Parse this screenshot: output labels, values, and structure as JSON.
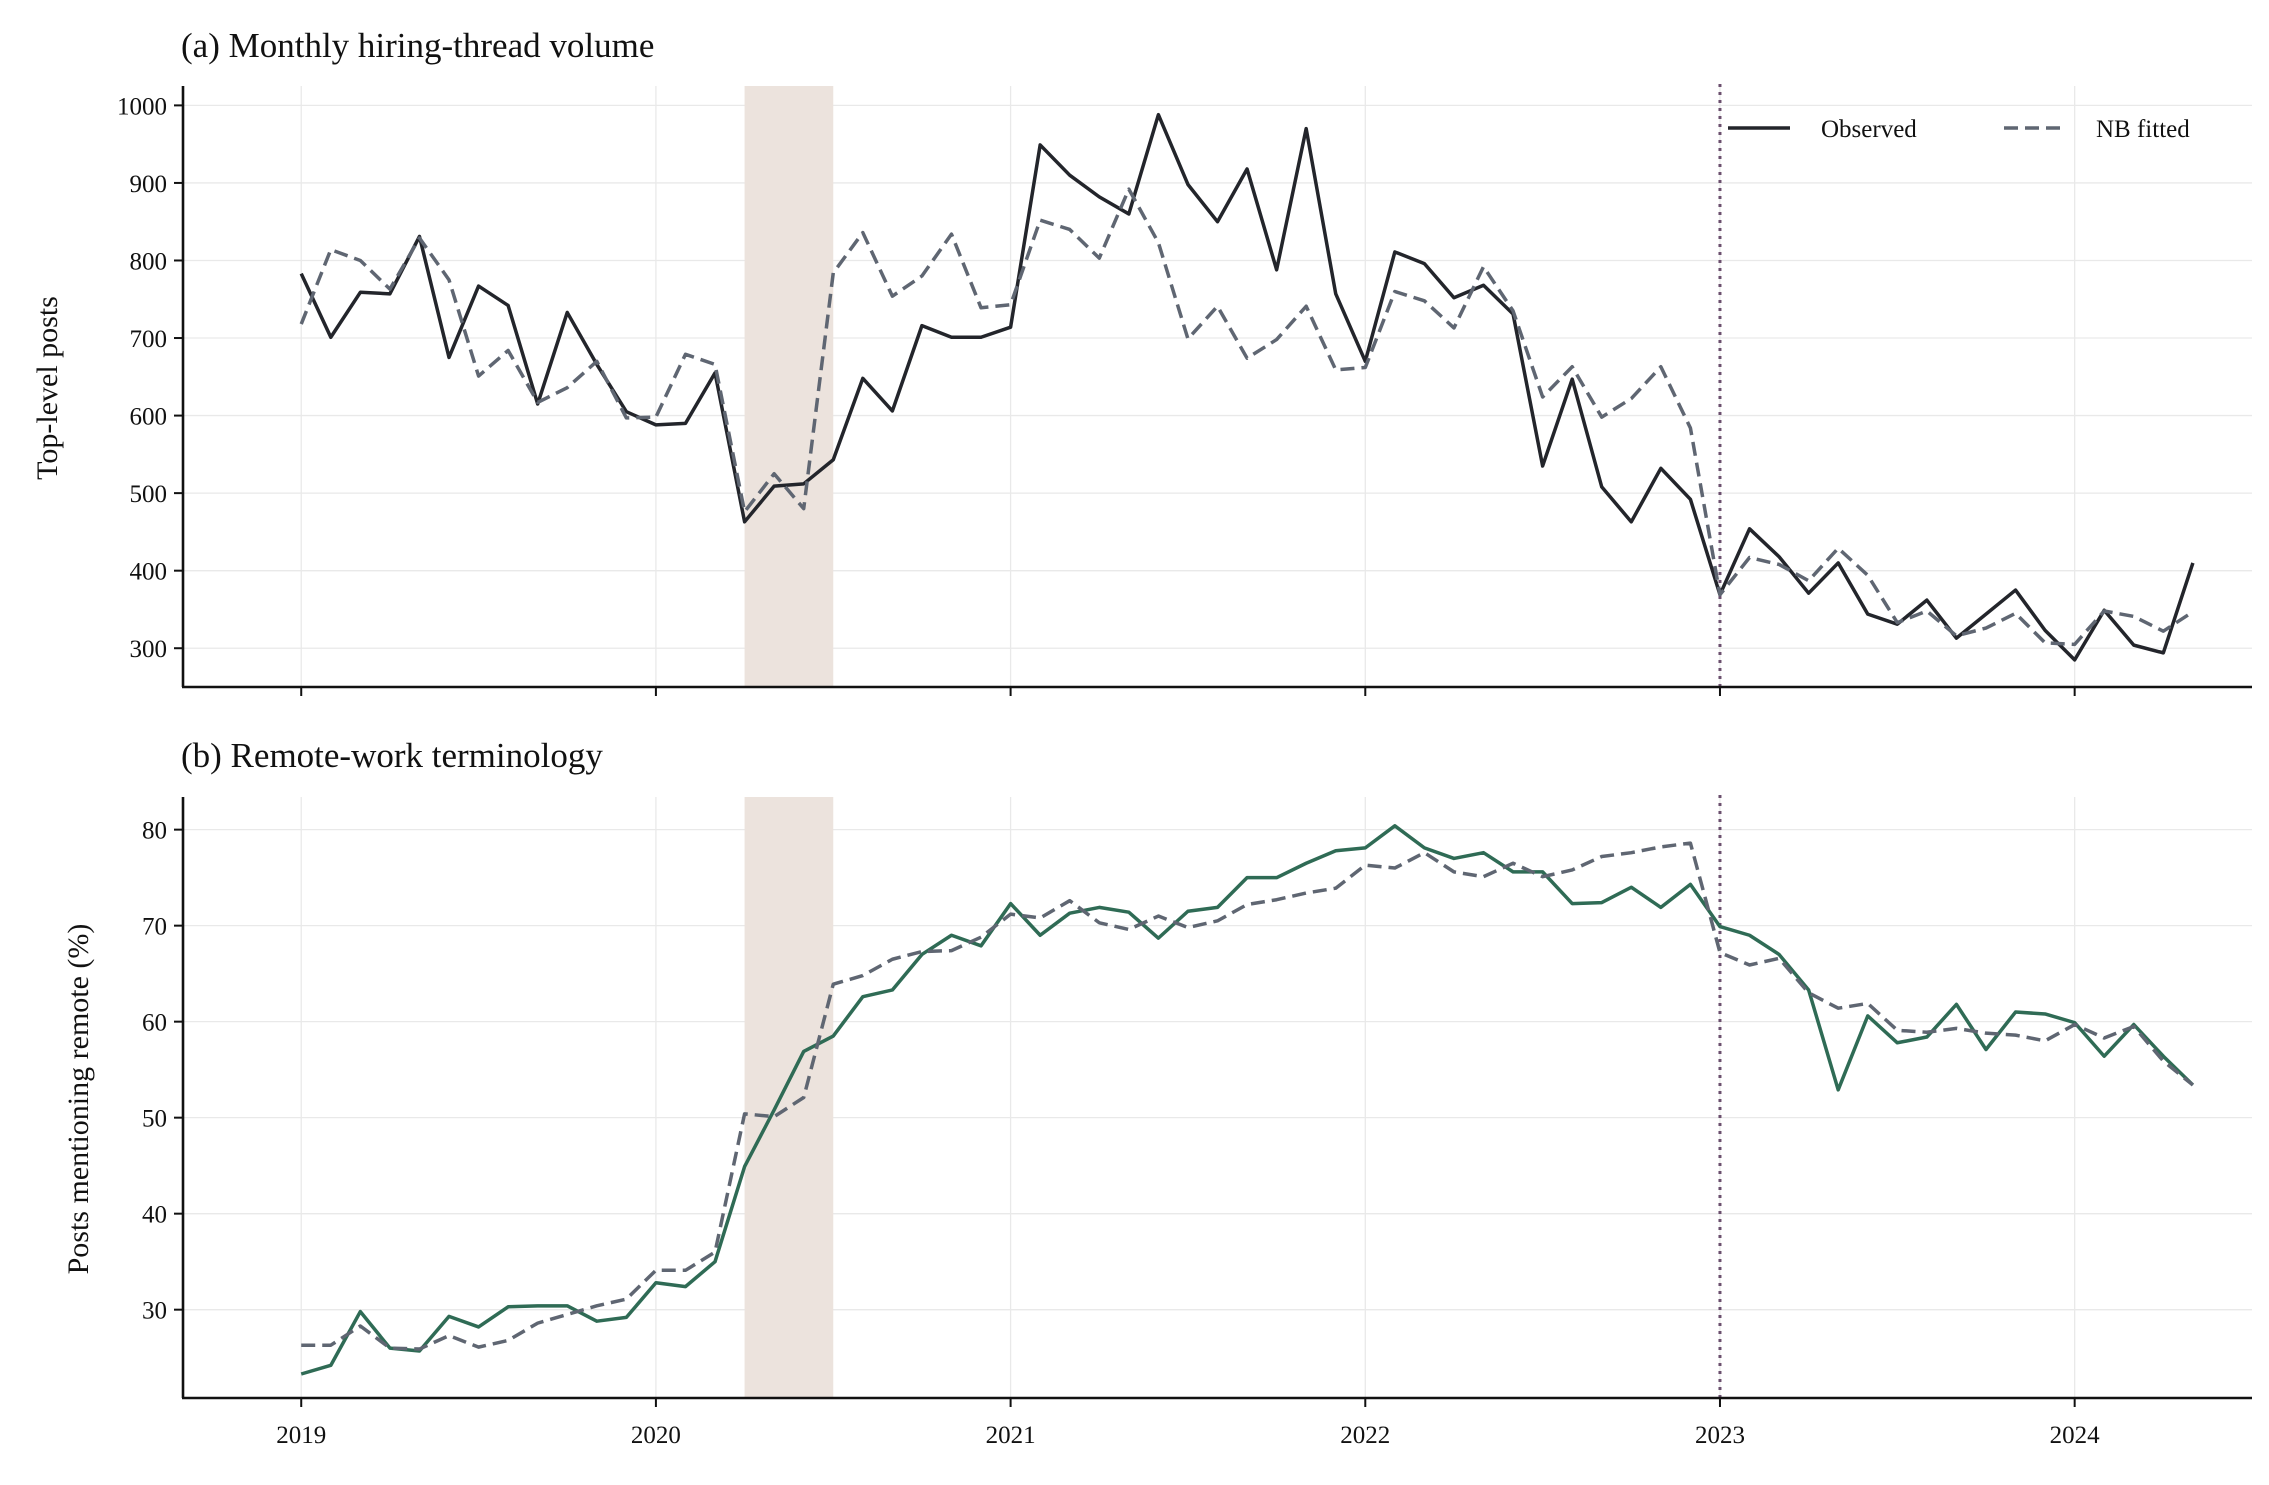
{
  "chart_data": [
    {
      "type": "line",
      "title": "(a) Monthly hiring-thread volume",
      "xlabel": "",
      "ylabel": "Top-level posts",
      "ylim": [
        250,
        1025
      ],
      "yticks": [
        300,
        400,
        500,
        600,
        700,
        800,
        900,
        1000
      ],
      "xlim": [
        "2018-09",
        "2024-07"
      ],
      "xticks": [
        "2019",
        "2020",
        "2021",
        "2022",
        "2023",
        "2024"
      ],
      "grid": true,
      "legend": "top-right",
      "shaded_period": [
        "2020-04",
        "2020-07"
      ],
      "vline": "2023-01",
      "x_start": "2019-01",
      "series": [
        {
          "name": "Observed",
          "style": "solid",
          "color": "#23252b",
          "values": [
            783,
            701,
            759,
            757,
            831,
            675,
            767,
            742,
            615,
            733,
            666,
            605,
            588,
            590,
            655,
            463,
            509,
            512,
            543,
            648,
            606,
            716,
            701,
            701,
            714,
            949,
            910,
            882,
            860,
            988,
            898,
            850,
            918,
            788,
            970,
            757,
            670,
            811,
            796,
            752,
            768,
            731,
            535,
            647,
            508,
            463,
            532,
            492,
            369,
            454,
            418,
            371,
            410,
            344,
            331,
            362,
            313,
            344,
            375,
            323,
            285,
            349,
            304,
            294,
            410
          ]
        },
        {
          "name": "NB fitted",
          "style": "dashed",
          "color": "#5f6672",
          "values": [
            718,
            814,
            800,
            763,
            829,
            775,
            651,
            684,
            617,
            636,
            670,
            597,
            598,
            679,
            666,
            476,
            525,
            480,
            784,
            836,
            754,
            780,
            834,
            739,
            743,
            852,
            840,
            803,
            892,
            823,
            699,
            741,
            674,
            698,
            741,
            659,
            662,
            760,
            748,
            713,
            792,
            735,
            624,
            663,
            598,
            622,
            663,
            584,
            369,
            417,
            408,
            387,
            429,
            394,
            333,
            348,
            316,
            326,
            345,
            307,
            305,
            348,
            341,
            322,
            347
          ]
        }
      ]
    },
    {
      "type": "line",
      "title": "(b) Remote-work terminology",
      "xlabel": "",
      "ylabel": "Posts mentioning remote (%)",
      "ylim": [
        20.8,
        83.4
      ],
      "yticks": [
        30,
        40,
        50,
        60,
        70,
        80
      ],
      "xlim": [
        "2018-09",
        "2024-07"
      ],
      "xticks": [
        "2019",
        "2020",
        "2021",
        "2022",
        "2023",
        "2024"
      ],
      "grid": true,
      "shaded_period": [
        "2020-04",
        "2020-07"
      ],
      "vline": "2023-01",
      "x_start": "2019-01",
      "series": [
        {
          "name": "",
          "style": "solid",
          "color": "#2f6b55",
          "values": [
            23.3,
            24.2,
            29.8,
            26.0,
            25.7,
            29.3,
            28.2,
            30.3,
            30.4,
            30.4,
            28.8,
            29.2,
            32.8,
            32.4,
            35.0,
            44.9,
            50.8,
            56.9,
            58.5,
            62.6,
            63.3,
            67.0,
            69.0,
            67.9,
            72.3,
            69.0,
            71.3,
            71.9,
            71.4,
            68.7,
            71.5,
            71.9,
            75.0,
            75.0,
            76.5,
            77.8,
            78.1,
            80.4,
            78.1,
            77.0,
            77.6,
            75.6,
            75.6,
            72.3,
            72.4,
            74.0,
            71.9,
            74.3,
            69.9,
            69.0,
            67.0,
            63.3,
            52.9,
            60.6,
            57.8,
            58.4,
            61.8,
            57.1,
            61.0,
            60.8,
            59.9,
            56.4,
            59.7,
            56.4,
            53.4
          ]
        },
        {
          "name": "",
          "style": "dashed",
          "color": "#5f6672",
          "values": [
            26.3,
            26.3,
            28.3,
            26.0,
            25.9,
            27.3,
            26.1,
            26.8,
            28.6,
            29.5,
            30.4,
            31.1,
            34.1,
            34.1,
            36.0,
            50.4,
            50.1,
            52.1,
            63.9,
            64.8,
            66.5,
            67.3,
            67.4,
            68.8,
            71.2,
            70.8,
            72.6,
            70.3,
            69.6,
            71.0,
            69.8,
            70.5,
            72.2,
            72.7,
            73.4,
            73.9,
            76.3,
            76.0,
            77.6,
            75.6,
            75.1,
            76.5,
            75.1,
            75.8,
            77.2,
            77.6,
            78.2,
            78.6,
            67.2,
            65.9,
            66.6,
            63.0,
            61.4,
            61.9,
            59.1,
            58.9,
            59.3,
            58.8,
            58.6,
            58.0,
            59.7,
            58.3,
            59.5,
            55.9,
            53.4
          ]
        }
      ]
    }
  ]
}
